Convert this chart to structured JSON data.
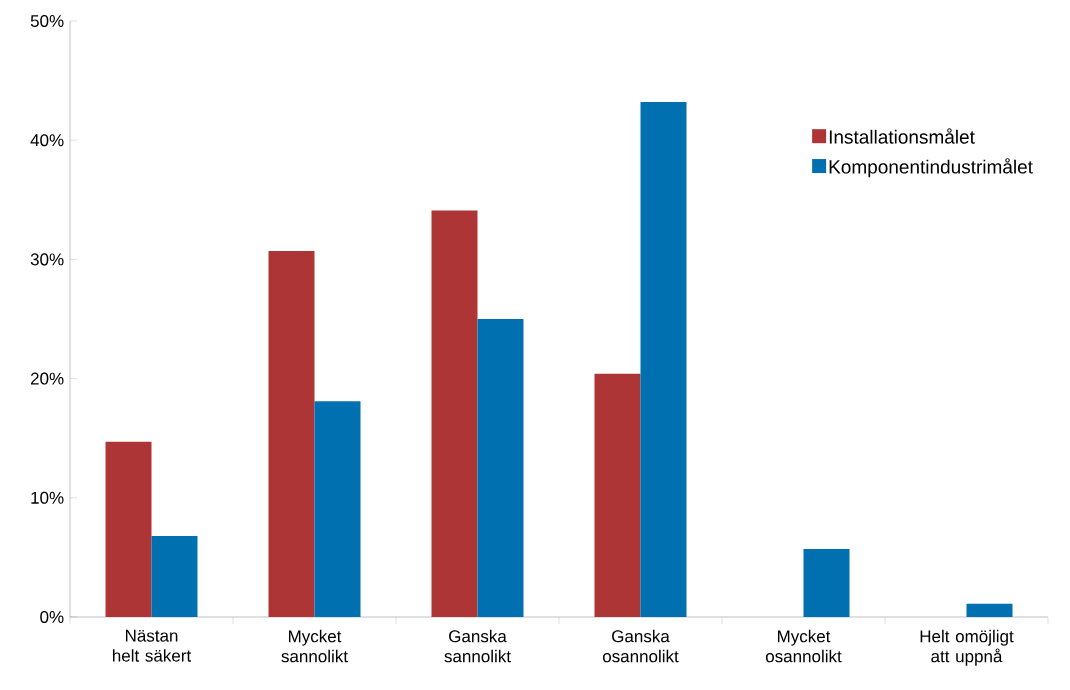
{
  "chart_data": {
    "type": "bar",
    "categories": [
      "Nästan helt säkert",
      "Mycket sannolikt",
      "Ganska sannolikt",
      "Ganska osannolikt",
      "Mycket osannolikt",
      "Helt omöjligt att uppnå"
    ],
    "series": [
      {
        "name": "Installationsmålet",
        "color": "#ae3535",
        "values": [
          14.7,
          30.7,
          34.1,
          20.4,
          0,
          0
        ]
      },
      {
        "name": "Komponentindustrimålet",
        "color": "#0070b0",
        "values": [
          6.8,
          18.1,
          25.0,
          43.2,
          5.7,
          1.1
        ]
      }
    ],
    "ylim": [
      0,
      50
    ],
    "yticks": [
      {
        "value": 0,
        "label": "0%"
      },
      {
        "value": 10,
        "label": "10%"
      },
      {
        "value": 20,
        "label": "20%"
      },
      {
        "value": 30,
        "label": "30%"
      },
      {
        "value": 40,
        "label": "40%"
      },
      {
        "value": 50,
        "label": "50%"
      }
    ],
    "grid": false,
    "legend": "right"
  }
}
